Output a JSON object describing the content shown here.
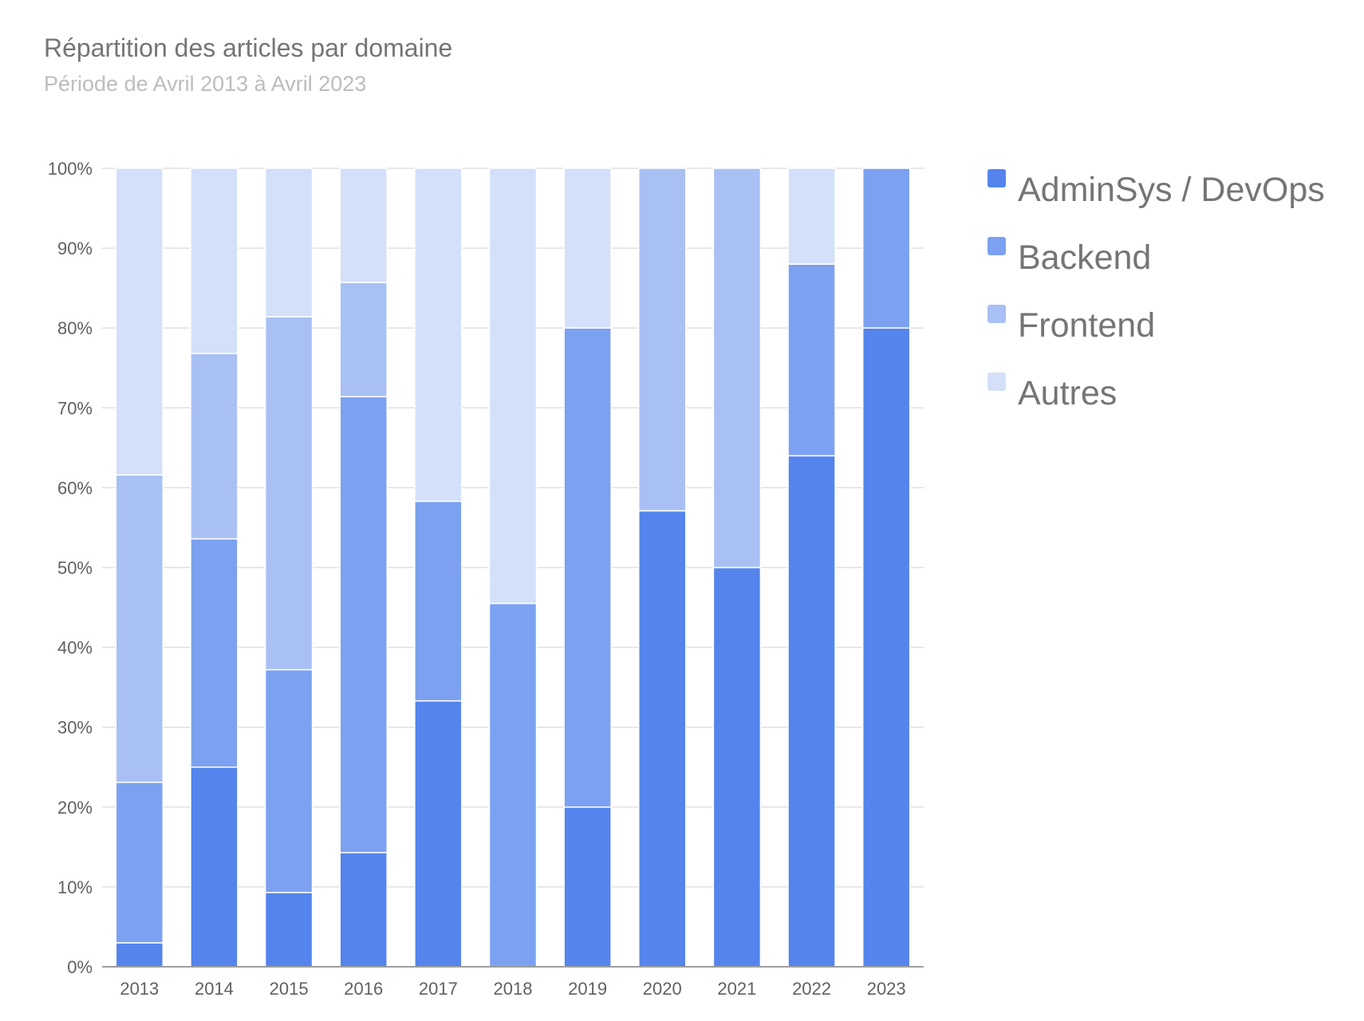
{
  "chart_data": {
    "type": "bar",
    "stacked": true,
    "title": "Répartition des articles par domaine",
    "subtitle": "Période de Avril 2013 à Avril 2023",
    "categories": [
      "2013",
      "2014",
      "2015",
      "2016",
      "2017",
      "2018",
      "2019",
      "2020",
      "2021",
      "2022",
      "2023"
    ],
    "series": [
      {
        "name": "AdminSys / DevOps",
        "color": "#5484ec",
        "values": [
          3.0,
          25.0,
          9.3,
          14.3,
          33.3,
          0,
          20.0,
          57.1,
          50.0,
          64.0,
          80.0
        ]
      },
      {
        "name": "Backend",
        "color": "#7ca1f0",
        "values": [
          20.1,
          28.6,
          27.9,
          57.1,
          25.0,
          45.5,
          60.0,
          0,
          0,
          24.0,
          20.0
        ]
      },
      {
        "name": "Frontend",
        "color": "#a9c0f4",
        "values": [
          38.5,
          23.2,
          44.2,
          14.3,
          0,
          0,
          0,
          42.9,
          50.0,
          0,
          0
        ]
      },
      {
        "name": "Autres",
        "color": "#d4e0f9",
        "values": [
          38.4,
          23.2,
          18.6,
          14.3,
          41.7,
          54.5,
          20.0,
          0,
          0,
          12.0,
          0
        ]
      }
    ],
    "y_ticks": [
      "0%",
      "10%",
      "20%",
      "30%",
      "40%",
      "50%",
      "60%",
      "70%",
      "80%",
      "90%",
      "100%"
    ],
    "ylim": [
      0,
      100
    ],
    "xlabel": "",
    "ylabel": "",
    "grid": true,
    "legend_position": "right"
  }
}
